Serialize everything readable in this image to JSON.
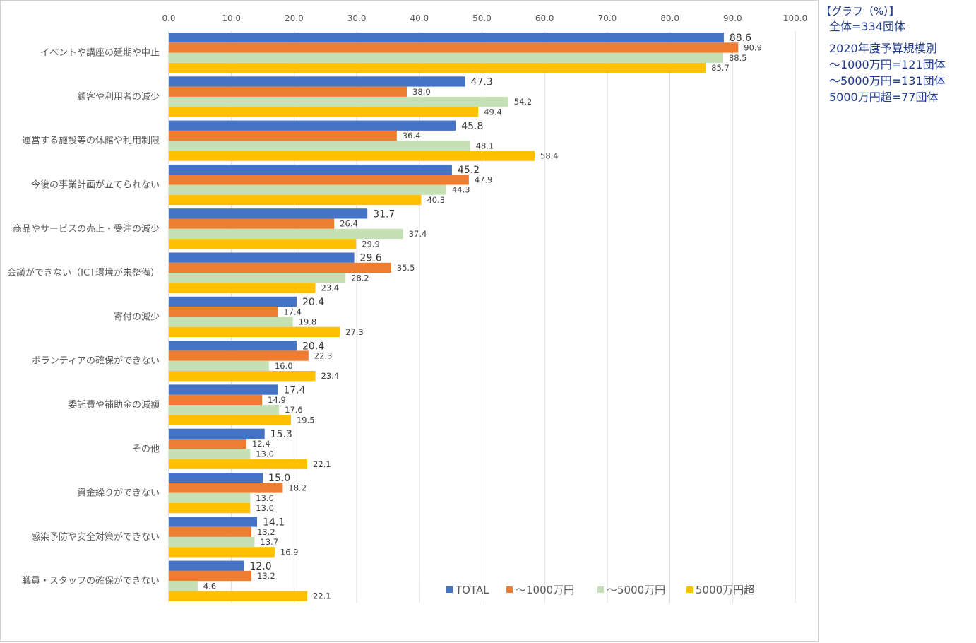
{
  "chart_data": {
    "type": "bar",
    "orientation": "horizontal",
    "xlim": [
      0,
      100
    ],
    "ticks": [
      "0.0",
      "10.0",
      "20.0",
      "30.0",
      "40.0",
      "50.0",
      "60.0",
      "70.0",
      "80.0",
      "90.0",
      "100.0"
    ],
    "grid": true,
    "legend_position": "bottom-right",
    "categories": [
      "イベントや講座の延期や中止",
      "顧客や利用者の減少",
      "運営する施設等の休館や利用制限",
      "今後の事業計画が立てられない",
      "商品やサービスの売上・受注の減少",
      "会議ができない（ICT環境が未整備）",
      "寄付の減少",
      "ボランティアの確保ができない",
      "委託費や補助金の減額",
      "その他",
      "資金繰りができない",
      "感染予防や安全対策ができない",
      "職員・スタッフの確保ができない"
    ],
    "series": [
      {
        "name": "TOTAL",
        "color": "#4472c4",
        "values": [
          88.6,
          47.3,
          45.8,
          45.2,
          31.7,
          29.6,
          20.4,
          20.4,
          17.4,
          15.3,
          15.0,
          14.1,
          12.0
        ],
        "labels": [
          "88.6",
          "47.3",
          "45.8",
          "45.2",
          "31.7",
          "29.6",
          "20.4",
          "20.4",
          "17.4",
          "15.3",
          "15.0",
          "14.1",
          "12.0"
        ]
      },
      {
        "name": "～1000万円",
        "color": "#ed7d31",
        "values": [
          90.9,
          38.0,
          36.4,
          47.9,
          26.4,
          35.5,
          17.4,
          22.3,
          14.9,
          12.4,
          18.2,
          13.2,
          13.2
        ],
        "labels": [
          "90.9",
          "38.0",
          "36.4",
          "47.9",
          "26.4",
          "35.5",
          "17.4",
          "22.3",
          "14.9",
          "12.4",
          "18.2",
          "13.2",
          "13.2"
        ]
      },
      {
        "name": "～5000万円",
        "color": "#c5e0b4",
        "values": [
          88.5,
          54.2,
          48.1,
          44.3,
          37.4,
          28.2,
          19.8,
          16.0,
          17.6,
          13.0,
          13.0,
          13.7,
          4.6
        ],
        "labels": [
          "88.5",
          "54.2",
          "48.1",
          "44.3",
          "37.4",
          "28.2",
          "19.8",
          "16.0",
          "17.6",
          "13.0",
          "13.0",
          "13.7",
          "4.6"
        ]
      },
      {
        "name": "5000万円超",
        "color": "#ffc000",
        "values": [
          85.7,
          49.4,
          58.4,
          40.3,
          29.9,
          23.4,
          27.3,
          23.4,
          19.5,
          22.1,
          13.0,
          16.9,
          22.1
        ],
        "labels": [
          "85.7",
          "49.4",
          "58.4",
          "40.3",
          "29.9",
          "23.4",
          "27.3",
          "23.4",
          "19.5",
          "22.1",
          "13.0",
          "16.9",
          "22.1"
        ]
      }
    ]
  },
  "side_note": {
    "heading": "【グラフ（%）】",
    "lines_a": [
      "全体=334団体"
    ],
    "lines_b": [
      "2020年度予算規模別",
      "～1000万円=121団体",
      "～5000万円=131団体",
      "5000万円超=77団体"
    ]
  },
  "colors": {
    "note_text": "#1f3a8a",
    "grid": "#d9d9d9",
    "axis_text": "#595959"
  }
}
